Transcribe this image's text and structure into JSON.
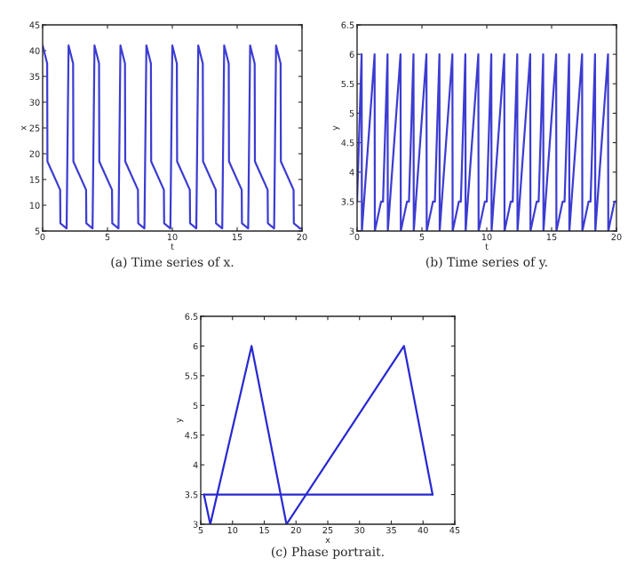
{
  "chart_data": [
    {
      "type": "line",
      "xlabel": "t",
      "ylabel": "x",
      "annotations": [
        "(a) Time series of x."
      ],
      "xlim": [
        0,
        20
      ],
      "xticks": [
        0,
        5,
        10,
        15,
        20
      ],
      "ylim": [
        5,
        45
      ],
      "yticks": [
        5,
        10,
        15,
        20,
        25,
        30,
        35,
        40,
        45
      ],
      "grid": false,
      "x": [
        0,
        0.35,
        0.37,
        1.35,
        1.37,
        1.85,
        2,
        2.35,
        2.37,
        3.35,
        3.37,
        3.85,
        4,
        4.35,
        4.37,
        5.35,
        5.37,
        5.85,
        6,
        6.35,
        6.37,
        7.35,
        7.37,
        7.85,
        8,
        8.35,
        8.37,
        9.35,
        9.37,
        9.85,
        10,
        10.35,
        10.37,
        11.35,
        11.37,
        11.85,
        12,
        12.35,
        12.37,
        13.35,
        13.37,
        13.85,
        14,
        14.35,
        14.37,
        15.35,
        15.37,
        15.85,
        16,
        16.35,
        16.37,
        17.35,
        17.37,
        17.85,
        18,
        18.35,
        18.37,
        19.35,
        19.37,
        19.85,
        20
      ],
      "series": [
        {
          "color": "#3c3cd2",
          "values": [
            41,
            37.5,
            18.5,
            13,
            6.5,
            5.5,
            41,
            37.5,
            18.5,
            13,
            6.5,
            5.5,
            41,
            37.5,
            18.5,
            13,
            6.5,
            5.5,
            41,
            37.5,
            18.5,
            13,
            6.5,
            5.5,
            41,
            37.5,
            18.5,
            13,
            6.5,
            5.5,
            41,
            37.5,
            18.5,
            13,
            6.5,
            5.5,
            41,
            37.5,
            18.5,
            13,
            6.5,
            5.5,
            41,
            37.5,
            18.5,
            13,
            6.5,
            5.5,
            41,
            37.5,
            18.5,
            13,
            6.5,
            5.5,
            41,
            37.5,
            18.5,
            13,
            6.5,
            5.5,
            5.5
          ]
        }
      ]
    },
    {
      "type": "line",
      "xlabel": "t",
      "ylabel": "y",
      "annotations": [
        "(b) Time series of y."
      ],
      "xlim": [
        0,
        20
      ],
      "xticks": [
        0,
        5,
        10,
        15,
        20
      ],
      "ylim": [
        3,
        6.5
      ],
      "yticks": [
        3,
        3.5,
        4,
        4.5,
        5,
        5.5,
        6,
        6.5
      ],
      "grid": false,
      "x": [
        0,
        0.35,
        0.37,
        1.35,
        1.37,
        1.85,
        2,
        2.35,
        2.37,
        3.35,
        3.37,
        3.85,
        4,
        4.35,
        4.37,
        5.35,
        5.37,
        5.85,
        6,
        6.35,
        6.37,
        7.35,
        7.37,
        7.85,
        8,
        8.35,
        8.37,
        9.35,
        9.37,
        9.85,
        10,
        10.35,
        10.37,
        11.35,
        11.37,
        11.85,
        12,
        12.35,
        12.37,
        13.35,
        13.37,
        13.85,
        14,
        14.35,
        14.37,
        15.35,
        15.37,
        15.85,
        16,
        16.35,
        16.37,
        17.35,
        17.37,
        17.85,
        18,
        18.35,
        18.37,
        19.35,
        19.37,
        19.85,
        20
      ],
      "series": [
        {
          "color": "#3c3cd2",
          "values": [
            3.5,
            6,
            3,
            6,
            3,
            3.5,
            3.5,
            6,
            3,
            6,
            3,
            3.5,
            3.5,
            6,
            3,
            6,
            3,
            3.5,
            3.5,
            6,
            3,
            6,
            3,
            3.5,
            3.5,
            6,
            3,
            6,
            3,
            3.5,
            3.5,
            6,
            3,
            6,
            3,
            3.5,
            3.5,
            6,
            3,
            6,
            3,
            3.5,
            3.5,
            6,
            3,
            6,
            3,
            3.5,
            3.5,
            6,
            3,
            6,
            3,
            3.5,
            3.5,
            6,
            3,
            6,
            3,
            3.5,
            3.5
          ]
        }
      ]
    },
    {
      "type": "line",
      "xlabel": "x",
      "ylabel": "y",
      "annotations": [
        "(c) Phase portrait."
      ],
      "xlim": [
        5,
        45
      ],
      "xticks": [
        5,
        10,
        15,
        20,
        25,
        30,
        35,
        40,
        45
      ],
      "ylim": [
        3,
        6.5
      ],
      "yticks": [
        3,
        3.5,
        4,
        4.5,
        5,
        5.5,
        6,
        6.5
      ],
      "grid": false,
      "series": [
        {
          "color": "#2828d2",
          "x": [
            41.5,
            37,
            18.5,
            13,
            6.5,
            5.5
          ],
          "values": [
            3.5,
            6,
            3,
            6,
            3,
            3.5
          ]
        },
        {
          "color": "#2828d2",
          "x": [
            5.5,
            41.5
          ],
          "values": [
            3.5,
            3.5
          ]
        }
      ]
    }
  ]
}
